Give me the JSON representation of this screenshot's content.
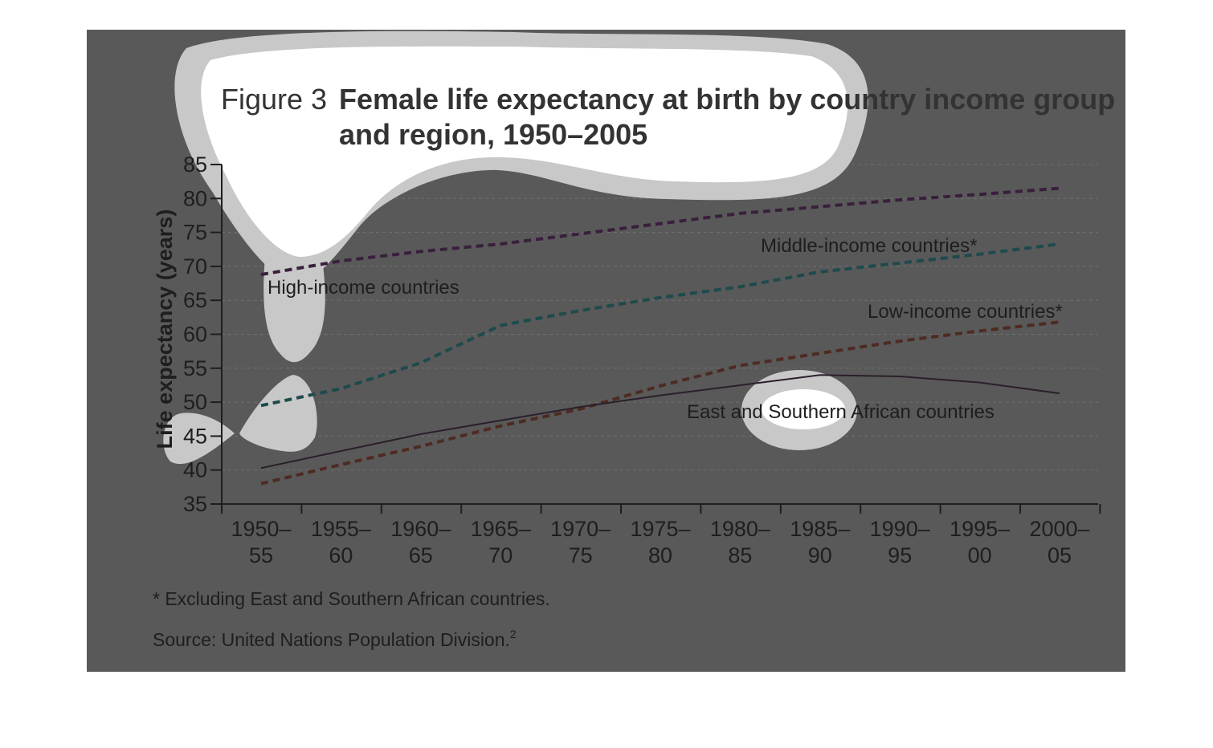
{
  "chart_data": {
    "type": "line",
    "title_prefix": "Figure 3",
    "title_lines": [
      "Female life expectancy at birth by country income group",
      "and region, 1950–2005"
    ],
    "ylabel": "Life expectancy (years)",
    "xlabel": "",
    "ylim": [
      35,
      85
    ],
    "y_ticks": [
      35,
      40,
      45,
      50,
      55,
      60,
      65,
      70,
      75,
      80,
      85
    ],
    "grid": true,
    "categories": [
      [
        "1950–",
        "55"
      ],
      [
        "1955–",
        "60"
      ],
      [
        "1960–",
        "65"
      ],
      [
        "1965–",
        "70"
      ],
      [
        "1970–",
        "75"
      ],
      [
        "1975–",
        "80"
      ],
      [
        "1980–",
        "85"
      ],
      [
        "1985–",
        "90"
      ],
      [
        "1990–",
        "95"
      ],
      [
        "1995–",
        "00"
      ],
      [
        "2000–",
        "05"
      ]
    ],
    "series": [
      {
        "name": "High-income countries",
        "color": "#3a1f3d",
        "dashed": true,
        "values": [
          68.8,
          70.8,
          72.2,
          73.3,
          74.8,
          76.3,
          77.8,
          78.8,
          79.8,
          80.6,
          81.5
        ]
      },
      {
        "name": "Middle-income countries*",
        "color": "#1e4a4d",
        "dashed": true,
        "values": [
          49.5,
          52.0,
          55.8,
          61.3,
          63.5,
          65.4,
          67.0,
          69.2,
          70.5,
          71.8,
          73.3
        ]
      },
      {
        "name": "Low-income countries*",
        "color": "#4e2b22",
        "dashed": true,
        "values": [
          38.0,
          40.8,
          43.5,
          46.5,
          49.0,
          52.4,
          55.4,
          57.2,
          59.0,
          60.5,
          61.8
        ]
      },
      {
        "name": "East and Southern African countries",
        "color": "#2b1f2b",
        "dashed": false,
        "values": [
          40.3,
          42.8,
          45.3,
          47.3,
          49.3,
          51.0,
          52.5,
          54.0,
          53.8,
          52.9,
          51.3
        ]
      }
    ],
    "footnote": "* Excluding East and Southern African countries.",
    "source": "Source: United Nations Population Division.",
    "source_sup": "2"
  }
}
